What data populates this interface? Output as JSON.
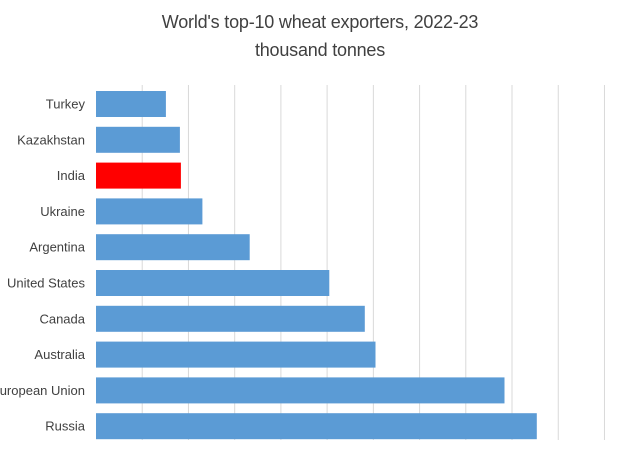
{
  "chart_data": {
    "type": "bar",
    "orientation": "horizontal",
    "title": "World's top-10 wheat exporters, 2022-23",
    "subtitle": "thousand tonnes",
    "categories": [
      "Turkey",
      "Kazakhstan",
      "India",
      "Ukraine",
      "Argentina",
      "United States",
      "Canada",
      "Australia",
      "European Union",
      "Russia"
    ],
    "values": [
      6500,
      7800,
      7900,
      9900,
      14300,
      21700,
      25000,
      26000,
      38000,
      41000
    ],
    "xlim": [
      0,
      48000
    ],
    "grid": "vertical",
    "colors": {
      "default": "#5b9bd5",
      "highlight": "#ff0000",
      "grid": "#d9d9d9",
      "text": "#404040"
    },
    "highlight": "India"
  }
}
